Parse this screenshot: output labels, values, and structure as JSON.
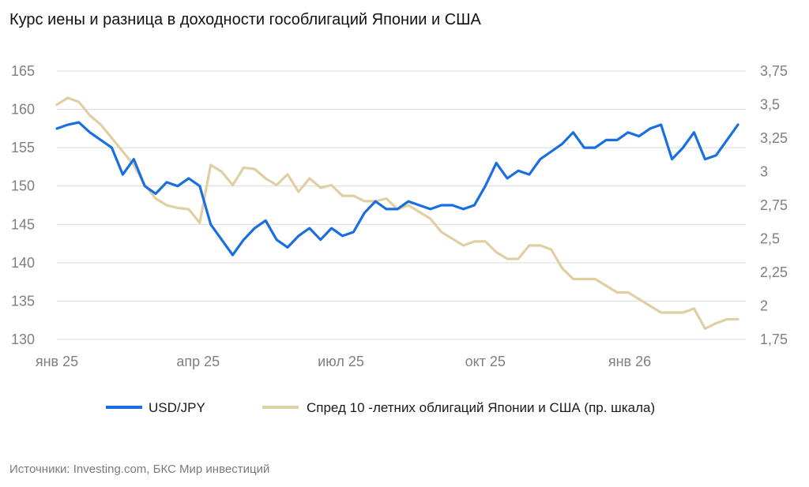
{
  "title": "Курс иены и разница в доходности гособлигаций Японии и США",
  "source": "Источники: Investing.com, БКС Мир инвестиций",
  "colors": {
    "usdjpy": "#1a6fe0",
    "spread": "#e1cfa4",
    "grid": "#d9d9d9",
    "tick": "#7f7f7f"
  },
  "chart_data": {
    "type": "line",
    "title": "Курс иены и разница в доходности гособлигаций Японии и США",
    "x_ticks": [
      "янв 25",
      "апр 25",
      "июл 25",
      "окт 25",
      "янв 26"
    ],
    "y_left": {
      "ticks": [
        "165",
        "160",
        "155",
        "150",
        "145",
        "140",
        "135",
        "130"
      ],
      "range": [
        130,
        165
      ]
    },
    "y_right": {
      "ticks": [
        "3,75",
        "3,5",
        "3,25",
        "3",
        "2,75",
        "2,5",
        "2,25",
        "2",
        "1,75"
      ],
      "range": [
        1.75,
        3.75
      ]
    },
    "grid": "horizontal",
    "legend_position": "bottom",
    "series": [
      {
        "name": "USD/JPY",
        "axis": "left",
        "x": [
          "2025-01-01",
          "2025-01-08",
          "2025-01-15",
          "2025-01-22",
          "2025-01-29",
          "2025-02-05",
          "2025-02-12",
          "2025-02-19",
          "2025-02-26",
          "2025-03-05",
          "2025-03-12",
          "2025-03-19",
          "2025-03-26",
          "2025-04-02",
          "2025-04-09",
          "2025-04-16",
          "2025-04-23",
          "2025-04-30",
          "2025-05-07",
          "2025-05-14",
          "2025-05-21",
          "2025-05-28",
          "2025-06-04",
          "2025-06-11",
          "2025-06-18",
          "2025-06-25",
          "2025-07-02",
          "2025-07-09",
          "2025-07-16",
          "2025-07-23",
          "2025-07-30",
          "2025-08-06",
          "2025-08-13",
          "2025-08-20",
          "2025-08-27",
          "2025-09-03",
          "2025-09-10",
          "2025-09-17",
          "2025-09-24",
          "2025-10-01",
          "2025-10-08",
          "2025-10-15",
          "2025-10-22",
          "2025-10-29",
          "2025-11-05",
          "2025-11-12",
          "2025-11-19",
          "2025-11-26",
          "2025-12-03",
          "2025-12-10",
          "2025-12-17",
          "2025-12-24",
          "2025-12-31",
          "2026-01-07",
          "2026-01-14",
          "2026-01-21",
          "2026-01-28",
          "2026-02-04",
          "2026-02-11",
          "2026-02-18",
          "2026-02-25",
          "2026-03-04",
          "2026-03-11"
        ],
        "values": [
          157.5,
          158,
          158.3,
          157,
          156,
          155,
          151.5,
          153.5,
          150,
          149,
          150.5,
          150,
          151,
          150,
          145,
          143,
          141,
          143,
          144.5,
          145.5,
          143,
          142,
          143.5,
          144.5,
          143,
          144.5,
          143.5,
          144,
          146.5,
          148,
          147,
          147,
          148,
          147.5,
          147,
          147.5,
          147.5,
          147,
          147.5,
          150,
          153,
          151,
          152,
          151.5,
          153.5,
          154.5,
          155.5,
          157,
          155,
          155,
          156,
          156,
          157,
          156.5,
          157.5,
          158,
          153.5,
          155,
          157,
          153.5,
          154,
          156,
          158
        ]
      },
      {
        "name": "Спред 10 -летних облигаций Японии и США (пр. шкала)",
        "axis": "right",
        "x": [
          "2025-01-01",
          "2025-01-08",
          "2025-01-15",
          "2025-01-22",
          "2025-01-29",
          "2025-02-05",
          "2025-02-12",
          "2025-02-19",
          "2025-02-26",
          "2025-03-05",
          "2025-03-12",
          "2025-03-19",
          "2025-03-26",
          "2025-04-02",
          "2025-04-09",
          "2025-04-16",
          "2025-04-23",
          "2025-04-30",
          "2025-05-07",
          "2025-05-14",
          "2025-05-21",
          "2025-05-28",
          "2025-06-04",
          "2025-06-11",
          "2025-06-18",
          "2025-06-25",
          "2025-07-02",
          "2025-07-09",
          "2025-07-16",
          "2025-07-23",
          "2025-07-30",
          "2025-08-06",
          "2025-08-13",
          "2025-08-20",
          "2025-08-27",
          "2025-09-03",
          "2025-09-10",
          "2025-09-17",
          "2025-09-24",
          "2025-10-01",
          "2025-10-08",
          "2025-10-15",
          "2025-10-22",
          "2025-10-29",
          "2025-11-05",
          "2025-11-12",
          "2025-11-19",
          "2025-11-26",
          "2025-12-03",
          "2025-12-10",
          "2025-12-17",
          "2025-12-24",
          "2025-12-31",
          "2026-01-07",
          "2026-01-14",
          "2026-01-21",
          "2026-01-28",
          "2026-02-04",
          "2026-02-11",
          "2026-02-18",
          "2026-02-25",
          "2026-03-04",
          "2026-03-11"
        ],
        "values": [
          3.5,
          3.55,
          3.52,
          3.42,
          3.35,
          3.25,
          3.15,
          3.05,
          2.9,
          2.8,
          2.75,
          2.73,
          2.72,
          2.62,
          3.05,
          3.0,
          2.9,
          3.03,
          3.02,
          2.95,
          2.9,
          2.98,
          2.85,
          2.95,
          2.88,
          2.9,
          2.82,
          2.82,
          2.78,
          2.78,
          2.8,
          2.72,
          2.75,
          2.7,
          2.65,
          2.55,
          2.5,
          2.45,
          2.48,
          2.48,
          2.4,
          2.35,
          2.35,
          2.45,
          2.45,
          2.42,
          2.28,
          2.2,
          2.2,
          2.2,
          2.15,
          2.1,
          2.1,
          2.05,
          2.0,
          1.95,
          1.95,
          1.95,
          1.98,
          1.83,
          1.87,
          1.9,
          1.9
        ]
      }
    ]
  }
}
